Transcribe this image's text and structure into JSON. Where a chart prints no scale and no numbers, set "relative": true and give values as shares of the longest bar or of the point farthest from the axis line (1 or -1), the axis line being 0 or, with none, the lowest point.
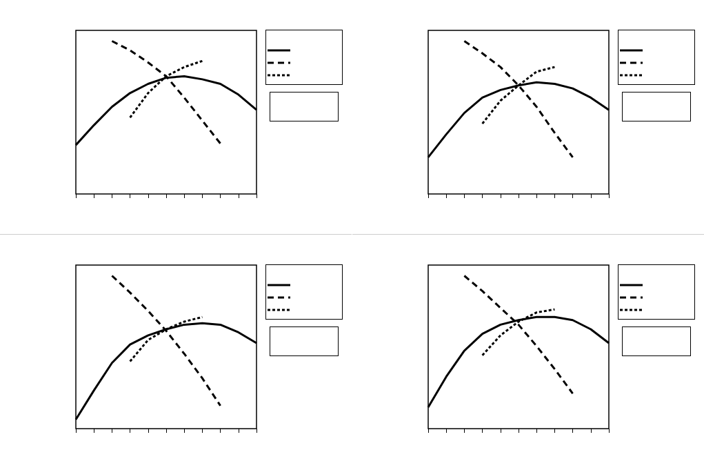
{
  "chart_data": [
    {
      "type": "line",
      "relative": true,
      "grid": false,
      "categories": [
        null,
        null,
        null,
        null,
        null,
        null,
        null,
        null,
        null,
        null,
        null
      ],
      "series": [
        {
          "color": "#000000",
          "line_style": "solid",
          "values": [
            0.32,
            0.45,
            0.57,
            0.66,
            0.72,
            0.76,
            0.77,
            0.75,
            0.72,
            0.65,
            0.55
          ]
        },
        {
          "color": "#000000",
          "line_style": "dashed",
          "values": [
            null,
            null,
            1.0,
            0.94,
            0.86,
            0.77,
            0.63,
            0.48,
            0.33,
            null,
            null
          ]
        },
        {
          "color": "#000000",
          "line_style": "dotted",
          "values": [
            null,
            null,
            null,
            0.5,
            0.66,
            0.77,
            0.83,
            0.87,
            null,
            null,
            null
          ]
        }
      ]
    },
    {
      "type": "line",
      "relative": true,
      "grid": false,
      "categories": [
        null,
        null,
        null,
        null,
        null,
        null,
        null,
        null,
        null,
        null,
        null
      ],
      "series": [
        {
          "color": "#000000",
          "line_style": "solid",
          "values": [
            0.24,
            0.39,
            0.53,
            0.63,
            0.68,
            0.71,
            0.73,
            0.72,
            0.69,
            0.63,
            0.55
          ]
        },
        {
          "color": "#000000",
          "line_style": "dashed",
          "values": [
            null,
            null,
            1.0,
            0.92,
            0.83,
            0.71,
            0.57,
            0.4,
            0.24,
            null,
            null
          ]
        },
        {
          "color": "#000000",
          "line_style": "dotted",
          "values": [
            null,
            null,
            null,
            0.46,
            0.61,
            0.71,
            0.8,
            0.83,
            null,
            null,
            null
          ]
        }
      ]
    },
    {
      "type": "line",
      "relative": true,
      "grid": false,
      "categories": [
        null,
        null,
        null,
        null,
        null,
        null,
        null,
        null,
        null,
        null,
        null
      ],
      "series": [
        {
          "color": "#000000",
          "line_style": "solid",
          "values": [
            0.06,
            0.25,
            0.43,
            0.55,
            0.61,
            0.65,
            0.68,
            0.69,
            0.68,
            0.63,
            0.56
          ]
        },
        {
          "color": "#000000",
          "line_style": "dashed",
          "values": [
            null,
            null,
            1.0,
            0.89,
            0.77,
            0.64,
            0.49,
            0.33,
            0.15,
            null,
            null
          ]
        },
        {
          "color": "#000000",
          "line_style": "dotted",
          "values": [
            null,
            null,
            null,
            0.44,
            0.58,
            0.65,
            0.7,
            0.73,
            null,
            null,
            null
          ]
        }
      ]
    },
    {
      "type": "line",
      "relative": true,
      "grid": false,
      "categories": [
        null,
        null,
        null,
        null,
        null,
        null,
        null,
        null,
        null,
        null,
        null
      ],
      "series": [
        {
          "color": "#000000",
          "line_style": "solid",
          "values": [
            0.14,
            0.34,
            0.51,
            0.62,
            0.68,
            0.71,
            0.73,
            0.73,
            0.71,
            0.65,
            0.56
          ]
        },
        {
          "color": "#000000",
          "line_style": "dashed",
          "values": [
            null,
            null,
            1.0,
            0.9,
            0.79,
            0.68,
            0.54,
            0.39,
            0.23,
            null,
            null
          ]
        },
        {
          "color": "#000000",
          "line_style": "dotted",
          "values": [
            null,
            null,
            null,
            0.48,
            0.61,
            0.7,
            0.76,
            0.78,
            null,
            null,
            null
          ]
        }
      ]
    }
  ]
}
